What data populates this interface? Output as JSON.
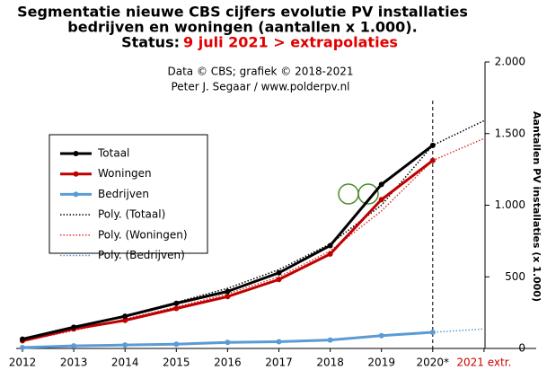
{
  "chart_data": {
    "type": "line",
    "title": [
      "Segmentatie nieuwe CBS cijfers evolutie PV installaties",
      "bedrijven en woningen (aantallen x 1.000)."
    ],
    "status_label": "Status:",
    "status_date": "9 juli 2021 > extrapolaties",
    "subtitle": [
      "Data © CBS; grafiek © 2018-2021",
      "Peter J. Segaar / www.polderpv.nl"
    ],
    "y_axis_label": "Aantallen PV installaties (x 1.000)",
    "categories": [
      "2012",
      "2013",
      "2014",
      "2015",
      "2016",
      "2017",
      "2018",
      "2019",
      "2020*",
      "2021 extr."
    ],
    "category_colors": [
      "#000000",
      "#000000",
      "#000000",
      "#000000",
      "#000000",
      "#000000",
      "#000000",
      "#000000",
      "#000000",
      "#cc0000"
    ],
    "ylim": [
      0,
      2000
    ],
    "yticks": [
      0,
      500,
      {
        "value": 1000,
        "label": "1.000"
      },
      {
        "value": 1500,
        "label": "1.500"
      },
      {
        "value": 2000,
        "label": "2.000"
      }
    ],
    "series": [
      {
        "name": "Totaal",
        "color": "#000000",
        "style": "solid",
        "values": [
          65,
          148,
          225,
          315,
          398,
          528,
          718,
          1145,
          1418,
          null
        ]
      },
      {
        "name": "Woningen",
        "color": "#c00000",
        "style": "solid",
        "values": [
          53,
          136,
          196,
          279,
          362,
          481,
          659,
          1039,
          1312,
          null
        ]
      },
      {
        "name": "Bedrijven",
        "color": "#5b9bd5",
        "style": "solid",
        "values": [
          6,
          18,
          24,
          30,
          42,
          47,
          59,
          89,
          113,
          null
        ]
      },
      {
        "name": "Poly. (Totaal)",
        "color": "#000000",
        "style": "dotted",
        "values": [
          62,
          140,
          228,
          322,
          420,
          550,
          730,
          1000,
          1418,
          1590
        ]
      },
      {
        "name": "Poly. (Woningen)",
        "color": "#e03030",
        "style": "dotted",
        "values": [
          50,
          125,
          205,
          290,
          380,
          500,
          680,
          960,
          1312,
          1466
        ]
      },
      {
        "name": "Poly. (Bedrijven)",
        "color": "#5b9bd5",
        "style": "dotted",
        "values": [
          8,
          16,
          22,
          30,
          40,
          50,
          62,
          88,
          113,
          136
        ]
      }
    ]
  }
}
